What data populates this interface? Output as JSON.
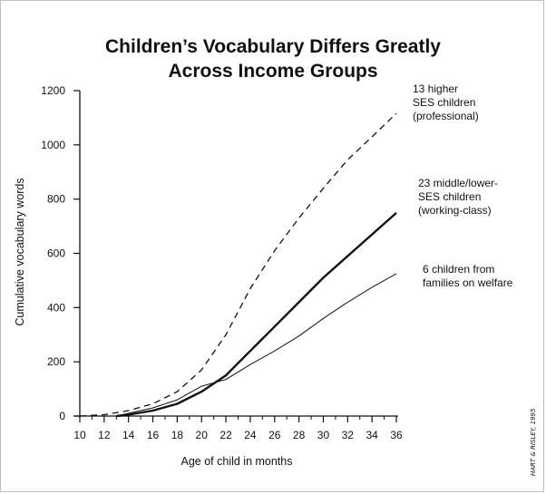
{
  "title": {
    "line1": "Children’s Vocabulary Differs Greatly",
    "line2": "Across Income Groups"
  },
  "credit": "HART & RISLEY, 1995",
  "chart_data": {
    "type": "line",
    "xlabel": "Age of child in months",
    "ylabel": "Cumulative vocabulary words",
    "xlim": [
      10,
      36
    ],
    "ylim": [
      0,
      1200
    ],
    "x_ticks": [
      "10",
      "12",
      "14",
      "16",
      "18",
      "20",
      "22",
      "24",
      "26",
      "28",
      "30",
      "32",
      "34",
      "36"
    ],
    "y_ticks": [
      "0",
      "200",
      "400",
      "600",
      "800",
      "1000",
      "1200"
    ],
    "grid": false,
    "series": [
      {
        "id": "higher",
        "label_lines": [
          "13 higher",
          "SES children",
          "(professional)"
        ],
        "style": "dashed",
        "x": [
          10,
          12,
          14,
          16,
          18,
          20,
          22,
          24,
          26,
          28,
          30,
          32,
          34,
          36
        ],
        "y": [
          0,
          5,
          20,
          45,
          90,
          170,
          300,
          470,
          610,
          730,
          840,
          945,
          1030,
          1116
        ]
      },
      {
        "id": "middle",
        "label_lines": [
          "23 middle/lower-",
          "SES children",
          "(working-class)"
        ],
        "style": "bold",
        "x": [
          13,
          14,
          16,
          18,
          20,
          22,
          24,
          26,
          28,
          30,
          32,
          34,
          36
        ],
        "y": [
          0,
          5,
          20,
          45,
          90,
          150,
          240,
          330,
          420,
          510,
          590,
          670,
          749
        ]
      },
      {
        "id": "welfare",
        "label_lines": [
          "6 children from",
          "families on welfare"
        ],
        "style": "thin",
        "x": [
          13,
          14,
          16,
          18,
          20,
          22,
          24,
          26,
          28,
          30,
          32,
          34,
          36
        ],
        "y": [
          0,
          10,
          30,
          60,
          110,
          135,
          190,
          240,
          295,
          360,
          420,
          475,
          525
        ]
      }
    ]
  }
}
